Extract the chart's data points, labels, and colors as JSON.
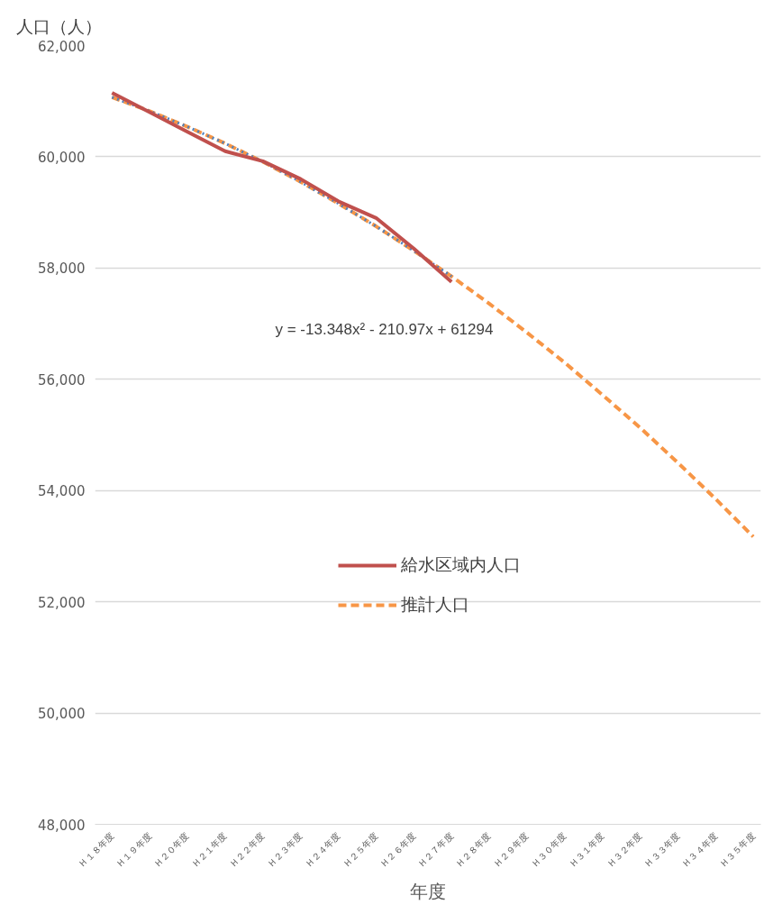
{
  "chart_data": {
    "type": "line",
    "xlabel": "年度",
    "ylabel": "人口（人）",
    "categories": [
      "Ｈ１８年度",
      "Ｈ１９年度",
      "Ｈ２０年度",
      "Ｈ２１年度",
      "Ｈ２２年度",
      "Ｈ２３年度",
      "Ｈ２４年度",
      "Ｈ２５年度",
      "Ｈ２６年度",
      "Ｈ２７年度",
      "Ｈ２８年度",
      "Ｈ２９年度",
      "Ｈ３０年度",
      "Ｈ３１年度",
      "Ｈ３２年度",
      "Ｈ３３年度",
      "Ｈ３４年度",
      "Ｈ３５年度"
    ],
    "series": [
      {
        "name": "推計人口",
        "color": "#f79646",
        "line_style": "dashed",
        "values": [
          61070,
          60820,
          60540,
          60240,
          59910,
          59550,
          59160,
          58750,
          58310,
          57850,
          57360,
          56840,
          56300,
          55720,
          55130,
          54500,
          53850,
          53170
        ]
      },
      {
        "color": "#4f81bd",
        "line_style": "dotted",
        "values": [
          61070,
          60820,
          60540,
          60240,
          59910,
          59550,
          59160,
          58750,
          58310,
          57850,
          null,
          null,
          null,
          null,
          null,
          null,
          null,
          null
        ]
      },
      {
        "name": "給水区域内人口",
        "color": "#c0504d",
        "line_style": "solid",
        "values": [
          61150,
          60800,
          60450,
          60100,
          59920,
          59600,
          59200,
          58900,
          58350,
          57750,
          null,
          null,
          null,
          null,
          null,
          null,
          null,
          null
        ]
      }
    ],
    "ylim": [
      48000,
      62000
    ],
    "yticks": [
      {
        "value": 48000,
        "label": "48,000"
      },
      {
        "value": 50000,
        "label": "50,000"
      },
      {
        "value": 52000,
        "label": "52,000"
      },
      {
        "value": 54000,
        "label": "54,000"
      },
      {
        "value": 56000,
        "label": "56,000"
      },
      {
        "value": 58000,
        "label": "58,000"
      },
      {
        "value": 60000,
        "label": "60,000"
      },
      {
        "value": 62000,
        "label": "62,000"
      }
    ],
    "grid": "y",
    "legend": "center",
    "marker": "none",
    "annotations": [
      "y = -13.348x² - 210.97x + 61294"
    ]
  }
}
